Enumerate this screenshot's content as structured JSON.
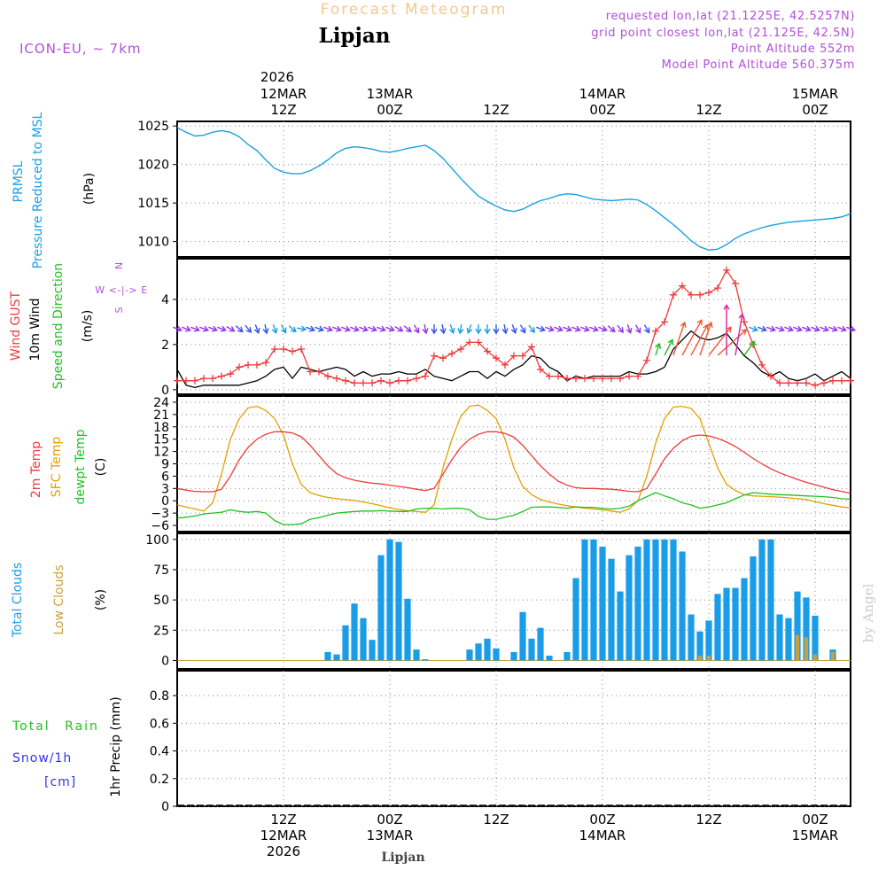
{
  "header": {
    "title": "Forecast Meteogram",
    "location": "Lipjan",
    "model": "ICON-EU, ~ 7km",
    "requested": "requested lon,lat (21.1225E, 42.5257N)",
    "grid_point": "grid point closest lon,lat (21.125E, 42.5N)",
    "point_altitude": "Point Altitude 552m",
    "model_altitude": "Model Point Altitude 560.375m",
    "footer_location": "Lipjan",
    "watermark": "by Angel"
  },
  "colors": {
    "pressure": "#1aa0e6",
    "gust": "#ee3b3b",
    "wind": "#000000",
    "temp": "#ee3b3b",
    "sfc": "#e3a000",
    "dewpt": "#22c022",
    "total_clouds": "#1a9de8",
    "low_clouds": "#c8a040",
    "rain": "#22c022",
    "snow": "#3333ee",
    "title": "#f3c890",
    "info": "#b050d8"
  },
  "time_axis": {
    "top_year": "2026",
    "labels": [
      {
        "t": 12,
        "top": [
          "12MAR",
          "12Z"
        ],
        "bottom": [
          "12Z",
          "12MAR",
          "2026"
        ]
      },
      {
        "t": 24,
        "top": [
          "13MAR",
          "00Z"
        ],
        "bottom": [
          "00Z",
          "13MAR"
        ]
      },
      {
        "t": 36,
        "top": [
          "12Z"
        ],
        "bottom": [
          "12Z"
        ]
      },
      {
        "t": 48,
        "top": [
          "14MAR",
          "00Z"
        ],
        "bottom": [
          "00Z",
          "14MAR"
        ]
      },
      {
        "t": 60,
        "top": [
          "12Z"
        ],
        "bottom": [
          "12Z"
        ]
      },
      {
        "t": 72,
        "top": [
          "15MAR",
          "00Z"
        ],
        "bottom": [
          "00Z",
          "15MAR"
        ]
      }
    ]
  },
  "chart_data": [
    {
      "type": "line",
      "name": "pressure",
      "labels": [
        "PRMSL",
        "Pressure Reduced to MSL"
      ],
      "ylabel": "(hPa)",
      "ylim": [
        1008,
        1025.6
      ],
      "ticks": [
        1010,
        1015,
        1020,
        1025
      ],
      "x": [
        0,
        1,
        2,
        3,
        4,
        5,
        6,
        7,
        8,
        9,
        10,
        11,
        12,
        13,
        14,
        15,
        16,
        17,
        18,
        19,
        20,
        21,
        22,
        23,
        24,
        25,
        26,
        27,
        28,
        29,
        30,
        31,
        32,
        33,
        34,
        35,
        36,
        37,
        38,
        39,
        40,
        41,
        42,
        43,
        44,
        45,
        46,
        47,
        48,
        49,
        50,
        51,
        52,
        53,
        54,
        55,
        56,
        57,
        58,
        59,
        60,
        61,
        62,
        63,
        64,
        65,
        66,
        67,
        68,
        69,
        70,
        71,
        72,
        73,
        74,
        75,
        76
      ],
      "y": [
        1024.8,
        1024.2,
        1023.7,
        1023.8,
        1024.2,
        1024.4,
        1024.2,
        1023.6,
        1022.6,
        1021.8,
        1020.6,
        1019.5,
        1019.0,
        1018.8,
        1018.8,
        1019.2,
        1019.8,
        1020.6,
        1021.5,
        1022.1,
        1022.3,
        1022.2,
        1022.0,
        1021.7,
        1021.6,
        1021.8,
        1022.1,
        1022.3,
        1022.5,
        1021.8,
        1020.8,
        1019.5,
        1018.2,
        1017.0,
        1015.9,
        1015.2,
        1014.6,
        1014.1,
        1013.9,
        1014.2,
        1014.8,
        1015.3,
        1015.6,
        1016.0,
        1016.2,
        1016.1,
        1015.8,
        1015.5,
        1015.4,
        1015.3,
        1015.4,
        1015.5,
        1015.4,
        1014.8,
        1014.0,
        1013.1,
        1012.2,
        1011.2,
        1010.1,
        1009.3,
        1008.9,
        1009.0,
        1009.6,
        1010.4,
        1011.0,
        1011.4,
        1011.8,
        1012.1,
        1012.3,
        1012.5,
        1012.6,
        1012.7,
        1012.8,
        1012.9,
        1013.0,
        1013.2,
        1013.6
      ]
    },
    {
      "type": "line",
      "name": "wind",
      "labels": [
        "Wind GUST",
        "10m Wind",
        "Speed and Direction"
      ],
      "ylabel": "(m/s)",
      "compass": [
        "N",
        "W <-|-> E",
        "S"
      ],
      "ylim": [
        -0.2,
        5.8
      ],
      "ticks": [
        0,
        2,
        4
      ],
      "arrow_row_y": 2.7,
      "x": [
        0,
        1,
        2,
        3,
        4,
        5,
        6,
        7,
        8,
        9,
        10,
        11,
        12,
        13,
        14,
        15,
        16,
        17,
        18,
        19,
        20,
        21,
        22,
        23,
        24,
        25,
        26,
        27,
        28,
        29,
        30,
        31,
        32,
        33,
        34,
        35,
        36,
        37,
        38,
        39,
        40,
        41,
        42,
        43,
        44,
        45,
        46,
        47,
        48,
        49,
        50,
        51,
        52,
        53,
        54,
        55,
        56,
        57,
        58,
        59,
        60,
        61,
        62,
        63,
        64,
        65,
        66,
        67,
        68,
        69,
        70,
        71,
        72,
        73,
        74,
        75,
        76
      ],
      "gust": [
        0.4,
        0.4,
        0.4,
        0.5,
        0.5,
        0.6,
        0.7,
        1.0,
        1.1,
        1.1,
        1.2,
        1.8,
        1.8,
        1.7,
        1.8,
        0.8,
        0.8,
        0.6,
        0.5,
        0.4,
        0.3,
        0.3,
        0.3,
        0.4,
        0.3,
        0.4,
        0.4,
        0.5,
        0.6,
        1.5,
        1.4,
        1.6,
        1.8,
        2.1,
        2.1,
        1.7,
        1.4,
        1.1,
        1.5,
        1.5,
        1.9,
        0.9,
        0.6,
        0.6,
        0.5,
        0.5,
        0.5,
        0.5,
        0.5,
        0.5,
        0.5,
        0.6,
        0.6,
        1.3,
        2.6,
        3.0,
        4.2,
        4.6,
        4.2,
        4.2,
        4.3,
        4.5,
        5.3,
        4.7,
        3.0,
        2.0,
        1.1,
        0.6,
        0.3,
        0.3,
        0.3,
        0.3,
        0.2,
        0.3,
        0.4,
        0.4,
        0.4
      ],
      "speed": [
        0.9,
        0.2,
        0.1,
        0.2,
        0.2,
        0.2,
        0.2,
        0.2,
        0.3,
        0.4,
        0.6,
        0.9,
        1.0,
        0.5,
        1.0,
        0.9,
        0.8,
        0.9,
        1.0,
        0.9,
        0.6,
        0.8,
        0.6,
        0.7,
        0.7,
        0.8,
        0.7,
        0.7,
        0.9,
        0.6,
        0.5,
        0.4,
        0.6,
        0.8,
        0.8,
        0.5,
        0.8,
        0.6,
        0.9,
        1.1,
        1.5,
        1.4,
        1.0,
        0.8,
        0.4,
        0.6,
        0.5,
        0.6,
        0.6,
        0.6,
        0.6,
        0.8,
        0.7,
        0.7,
        0.8,
        1.0,
        1.8,
        2.2,
        2.6,
        2.3,
        2.2,
        2.3,
        2.5,
        2.0,
        1.5,
        1.2,
        0.8,
        0.6,
        0.8,
        0.5,
        0.4,
        0.5,
        0.7,
        0.4,
        0.6,
        0.8,
        0.5
      ],
      "arrow_dir_deg": [
        250,
        250,
        250,
        250,
        250,
        250,
        240,
        230,
        220,
        200,
        190,
        200,
        210,
        230,
        260,
        250,
        250,
        250,
        250,
        250,
        250,
        250,
        250,
        250,
        250,
        240,
        230,
        210,
        190,
        180,
        190,
        200,
        170,
        160,
        180,
        180,
        180,
        190,
        200,
        210,
        220,
        250,
        250,
        250,
        250,
        250,
        250,
        250,
        250,
        230,
        220,
        200,
        210,
        210,
        200,
        210,
        200,
        210,
        210,
        200,
        220,
        230,
        180,
        190,
        220,
        250,
        250,
        250,
        250,
        250,
        250,
        250,
        250,
        250,
        250,
        250,
        250
      ]
    },
    {
      "type": "line",
      "name": "temperature",
      "labels": [
        "2m Temp",
        "SFC Temp",
        "dewpt Temp"
      ],
      "ylabel": "(C)",
      "ylim": [
        -7.5,
        25.5
      ],
      "ticks": [
        -6,
        -3,
        0,
        3,
        6,
        9,
        12,
        15,
        18,
        21,
        24
      ],
      "x": [
        0,
        1,
        2,
        3,
        4,
        5,
        6,
        7,
        8,
        9,
        10,
        11,
        12,
        13,
        14,
        15,
        16,
        17,
        18,
        19,
        20,
        21,
        22,
        23,
        24,
        25,
        26,
        27,
        28,
        29,
        30,
        31,
        32,
        33,
        34,
        35,
        36,
        37,
        38,
        39,
        40,
        41,
        42,
        43,
        44,
        45,
        46,
        47,
        48,
        49,
        50,
        51,
        52,
        53,
        54,
        55,
        56,
        57,
        58,
        59,
        60,
        61,
        62,
        63,
        64,
        65,
        66,
        67,
        68,
        69,
        70,
        71,
        72,
        73,
        74,
        75,
        76
      ],
      "temp_2m": [
        3.0,
        2.6,
        2.3,
        2.2,
        2.2,
        2.8,
        6.0,
        10.0,
        13.0,
        15.0,
        16.2,
        16.8,
        16.8,
        16.5,
        15.6,
        13.5,
        11.0,
        8.5,
        6.6,
        5.6,
        5.0,
        4.6,
        4.3,
        4.1,
        3.8,
        3.5,
        3.2,
        2.8,
        2.5,
        3.0,
        6.5,
        10.0,
        13.0,
        15.0,
        16.2,
        16.8,
        16.8,
        16.4,
        15.5,
        13.5,
        11.0,
        8.5,
        6.5,
        4.8,
        3.8,
        3.2,
        3.0,
        3.0,
        2.9,
        2.8,
        2.6,
        2.3,
        2.2,
        3.0,
        6.5,
        10.2,
        12.8,
        14.6,
        15.7,
        16.0,
        15.8,
        15.2,
        14.3,
        13.2,
        11.8,
        10.3,
        9.0,
        7.8,
        6.8,
        6.0,
        5.2,
        4.5,
        3.9,
        3.3,
        2.7,
        2.3,
        1.8
      ],
      "temp_sfc": [
        -1.0,
        -1.5,
        -2.0,
        -2.5,
        -0.5,
        6.5,
        15.0,
        20.0,
        22.6,
        23.0,
        22.0,
        20.0,
        16.0,
        9.0,
        4.0,
        2.0,
        1.3,
        0.8,
        0.5,
        0.3,
        0.1,
        -0.3,
        -0.7,
        -1.2,
        -1.7,
        -2.1,
        -2.4,
        -2.6,
        -2.8,
        -1.0,
        8.0,
        15.0,
        20.5,
        23.0,
        23.3,
        22.0,
        20.0,
        15.0,
        8.0,
        3.5,
        1.5,
        0.3,
        -0.3,
        -0.8,
        -1.2,
        -1.5,
        -1.8,
        -2.0,
        -2.2,
        -2.5,
        -2.8,
        -2.0,
        0.0,
        6.0,
        14.0,
        20.0,
        22.8,
        23.0,
        22.5,
        20.0,
        14.0,
        8.0,
        4.0,
        2.5,
        1.5,
        1.2,
        1.1,
        1.0,
        0.9,
        0.7,
        0.5,
        0.3,
        -0.2,
        -0.7,
        -1.1,
        -1.5,
        -1.7
      ],
      "temp_dewpt": [
        -4.2,
        -4.0,
        -3.7,
        -3.2,
        -3.0,
        -2.8,
        -2.2,
        -2.6,
        -2.8,
        -2.6,
        -3.0,
        -4.8,
        -5.8,
        -5.8,
        -5.6,
        -4.5,
        -4.1,
        -3.5,
        -3.0,
        -2.8,
        -2.6,
        -2.5,
        -2.5,
        -2.4,
        -2.5,
        -2.6,
        -2.6,
        -2.0,
        -1.8,
        -1.8,
        -2.0,
        -1.8,
        -1.8,
        -2.2,
        -3.8,
        -4.5,
        -4.5,
        -4.0,
        -3.5,
        -2.6,
        -1.6,
        -1.5,
        -1.5,
        -1.6,
        -1.8,
        -1.5,
        -1.6,
        -1.6,
        -1.9,
        -2.0,
        -1.8,
        -1.3,
        0.0,
        1.0,
        2.0,
        1.2,
        0.5,
        -0.5,
        -1.0,
        -1.8,
        -1.5,
        -1.0,
        -0.5,
        0.5,
        1.4,
        2.0,
        1.8,
        1.6,
        1.5,
        1.4,
        1.3,
        1.2,
        1.1,
        1.0,
        0.8,
        0.5,
        0.4
      ]
    },
    {
      "type": "bar",
      "name": "clouds",
      "labels": [
        "Total Clouds",
        "Low Clouds"
      ],
      "ylabel": "(%)",
      "ylim": [
        -7,
        105
      ],
      "ticks": [
        0,
        25,
        50,
        75,
        100
      ],
      "x": [
        0,
        1,
        2,
        3,
        4,
        5,
        6,
        7,
        8,
        9,
        10,
        11,
        12,
        13,
        14,
        15,
        16,
        17,
        18,
        19,
        20,
        21,
        22,
        23,
        24,
        25,
        26,
        27,
        28,
        29,
        30,
        31,
        32,
        33,
        34,
        35,
        36,
        37,
        38,
        39,
        40,
        41,
        42,
        43,
        44,
        45,
        46,
        47,
        48,
        49,
        50,
        51,
        52,
        53,
        54,
        55,
        56,
        57,
        58,
        59,
        60,
        61,
        62,
        63,
        64,
        65,
        66,
        67,
        68,
        69,
        70,
        71,
        72,
        73,
        74,
        75,
        76
      ],
      "total": [
        0,
        0,
        0,
        0,
        0,
        0,
        0,
        0,
        0,
        0,
        0,
        0,
        0,
        0,
        0,
        0,
        0,
        7,
        5,
        29,
        47,
        35,
        17,
        87,
        100,
        98,
        51,
        9,
        1,
        0,
        0,
        0,
        0,
        9,
        14,
        18,
        10,
        0,
        7,
        40,
        18,
        27,
        4,
        0,
        7,
        68,
        100,
        100,
        94,
        84,
        57,
        87,
        94,
        100,
        100,
        100,
        100,
        90,
        38,
        24,
        33,
        55,
        60,
        60,
        68,
        86,
        100,
        100,
        38,
        35,
        57,
        52,
        37,
        0,
        9,
        0,
        0
      ],
      "low": [
        0,
        0,
        0,
        0,
        0,
        0,
        0,
        0,
        0,
        0,
        0,
        0,
        0,
        0,
        0,
        0,
        0,
        0,
        0,
        0,
        0,
        0,
        0,
        0,
        0,
        0,
        0,
        0,
        0,
        0,
        0,
        0,
        0,
        0,
        0,
        0,
        0,
        0,
        0,
        0,
        0,
        0,
        0,
        0,
        0,
        0,
        0,
        0,
        0,
        0,
        0,
        0,
        0,
        0,
        0,
        0,
        0,
        0,
        0,
        4,
        4,
        0,
        0,
        0,
        0,
        0,
        0,
        0,
        0,
        0,
        21,
        19,
        5,
        0,
        7,
        0,
        0
      ]
    },
    {
      "type": "bar",
      "name": "precipitation",
      "labels": [
        "Total Rain",
        "Snow/1h",
        "[cm]"
      ],
      "ylabel": "1hr Precip (mm)",
      "ylim": [
        0,
        0.98
      ],
      "ticks": [
        0,
        0.2,
        0.4,
        0.6,
        0.8
      ],
      "tick_labels": [
        "0",
        "0.2",
        "0.4",
        "0.6",
        "0.8"
      ],
      "x": [
        0,
        1,
        2,
        3,
        4,
        5,
        6,
        7,
        8,
        9,
        10,
        11,
        12,
        13,
        14,
        15,
        16,
        17,
        18,
        19,
        20,
        21,
        22,
        23,
        24,
        25,
        26,
        27,
        28,
        29,
        30,
        31,
        32,
        33,
        34,
        35,
        36,
        37,
        38,
        39,
        40,
        41,
        42,
        43,
        44,
        45,
        46,
        47,
        48,
        49,
        50,
        51,
        52,
        53,
        54,
        55,
        56,
        57,
        58,
        59,
        60,
        61,
        62,
        63,
        64,
        65,
        66,
        67,
        68,
        69,
        70,
        71,
        72,
        73,
        74,
        75,
        76
      ],
      "rain": [
        0,
        0,
        0,
        0,
        0,
        0,
        0,
        0,
        0,
        0,
        0,
        0,
        0,
        0,
        0,
        0,
        0,
        0,
        0,
        0,
        0,
        0,
        0,
        0,
        0,
        0,
        0,
        0,
        0,
        0,
        0,
        0,
        0,
        0,
        0,
        0,
        0,
        0,
        0,
        0,
        0,
        0,
        0,
        0,
        0,
        0,
        0,
        0,
        0,
        0,
        0,
        0,
        0,
        0,
        0,
        0,
        0,
        0,
        0,
        0,
        0,
        0,
        0,
        0,
        0,
        0,
        0,
        0,
        0,
        0,
        0,
        0,
        0,
        0,
        0,
        0,
        0
      ],
      "snow": [
        0,
        0,
        0,
        0,
        0,
        0,
        0,
        0,
        0,
        0,
        0,
        0,
        0,
        0,
        0,
        0,
        0,
        0,
        0,
        0,
        0,
        0,
        0,
        0,
        0,
        0,
        0,
        0,
        0,
        0,
        0,
        0,
        0,
        0,
        0,
        0,
        0,
        0,
        0,
        0,
        0,
        0,
        0,
        0,
        0,
        0,
        0,
        0,
        0,
        0,
        0,
        0,
        0,
        0,
        0,
        0,
        0,
        0,
        0,
        0,
        0,
        0,
        0,
        0,
        0,
        0,
        0,
        0,
        0,
        0,
        0,
        0,
        0,
        0,
        0,
        0,
        0
      ]
    }
  ]
}
